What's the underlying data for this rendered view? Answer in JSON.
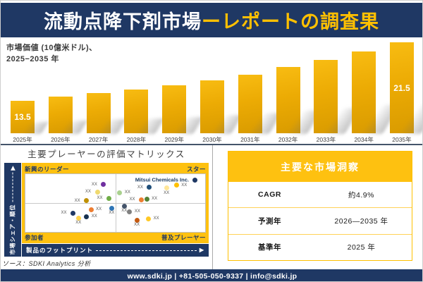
{
  "title": {
    "part_white": "流動点降下剤市場",
    "part_gold": "ーレポートの調査果"
  },
  "chart_data": [
    {
      "type": "bar",
      "title_lines": [
        "市場価値 (10億米ドル)、",
        "2025−2035 年"
      ],
      "title": "市場価値 (10億米ドル)、2025−2035 年",
      "categories": [
        "2025年",
        "2026年",
        "2027年",
        "2028年",
        "2029年",
        "2030年",
        "2031年",
        "2032年",
        "2033年",
        "2034年",
        "2035年"
      ],
      "values": [
        13.5,
        14.1,
        14.6,
        15.0,
        15.6,
        16.3,
        17.1,
        18.1,
        19.1,
        20.2,
        21.5
      ],
      "value_labels": [
        "13.5",
        "",
        "",
        "",
        "",
        "",
        "",
        "",
        "",
        "",
        "21.5"
      ],
      "ylabel": "市場価値 (10億米ドル)",
      "bar_color": "#ECAB04",
      "grid": false,
      "legend": "none"
    },
    {
      "type": "scatter",
      "title": "主要プレーヤーの評価マトリックス",
      "x_axis": "製品のフットプリント",
      "y_axis": "市場シェア・順位",
      "quadrants": {
        "top_left": "新興のリーダー",
        "top_right": "スター",
        "bottom_left": "参加者",
        "bottom_right": "普及プレーヤー"
      },
      "highlight_company": "Mitsui Chemicals Inc.",
      "axis_note": "x/y are relative positions 0-100 inside plot, y measured from top",
      "points": [
        {
          "x": 43.5,
          "y": 18,
          "color": "#7030A0",
          "label": "XX",
          "side": "left"
        },
        {
          "x": 40,
          "y": 31,
          "color": "#EFD96F",
          "label": "XX",
          "side": "left"
        },
        {
          "x": 34,
          "y": 46,
          "color": "#BF9000",
          "label": "XX",
          "side": "left"
        },
        {
          "x": 46.5,
          "y": 42,
          "color": "#70AD47",
          "label": "XX",
          "side": "left"
        },
        {
          "x": 94.5,
          "y": 10,
          "color": "#1F3864",
          "label": "Mitsui Chemicals Inc.",
          "side": "left",
          "bold": true
        },
        {
          "x": 52.5,
          "y": 32,
          "color": "#A9D18E",
          "label": "XX",
          "side": "right"
        },
        {
          "x": 69,
          "y": 23,
          "color": "#1F4E79",
          "label": "XX",
          "side": "left"
        },
        {
          "x": 84,
          "y": 19,
          "color": "#FFC000",
          "label": "XX",
          "side": "right"
        },
        {
          "x": 78.5,
          "y": 24,
          "color": "#FFE699",
          "label": "XX",
          "side": "below"
        },
        {
          "x": 64.5,
          "y": 44.5,
          "color": "#ED7D31",
          "label": "XX",
          "side": "left"
        },
        {
          "x": 67.5,
          "y": 43,
          "color": "#548235",
          "label": "XX",
          "side": "right"
        },
        {
          "x": 26.5,
          "y": 67.5,
          "color": "#203864",
          "label": "XX",
          "side": "left"
        },
        {
          "x": 29.5,
          "y": 76,
          "color": "#FFD34D",
          "label": "XX",
          "side": "below"
        },
        {
          "x": 34,
          "y": 73.5,
          "color": "#17314F",
          "label": "XX",
          "side": "right"
        },
        {
          "x": 36.5,
          "y": 61,
          "color": "#ED7D31",
          "label": "XX",
          "side": "right"
        },
        {
          "x": 48,
          "y": 59,
          "color": "#2E75B6",
          "label": "XX",
          "side": "below"
        },
        {
          "x": 55,
          "y": 55,
          "color": "#44546A",
          "label": "XX",
          "side": "below"
        },
        {
          "x": 58,
          "y": 65,
          "color": "#808080",
          "label": "XX",
          "side": "right"
        },
        {
          "x": 62,
          "y": 79.5,
          "color": "#C55A11",
          "label": "XX",
          "side": "below"
        },
        {
          "x": 68.5,
          "y": 77,
          "color": "#FFC926",
          "label": "XX",
          "side": "right"
        }
      ]
    }
  ],
  "insights": {
    "header": "主要な市場洞察",
    "rows": [
      {
        "label": "CAGR",
        "value": "約4.9%"
      },
      {
        "label": "予測年",
        "value": "2026—2035 年"
      },
      {
        "label": "基準年",
        "value": "2025 年"
      }
    ]
  },
  "source": "ソース：SDKI Analytics 分析",
  "footer": "www.sdki.jp | +81-505-050-9337 | info@sdki.jp",
  "colors": {
    "navy": "#1F3864",
    "gold": "#FFC000",
    "bar_gradient_top": "#F8BC12",
    "bar_gradient_bottom": "#D99B00"
  }
}
